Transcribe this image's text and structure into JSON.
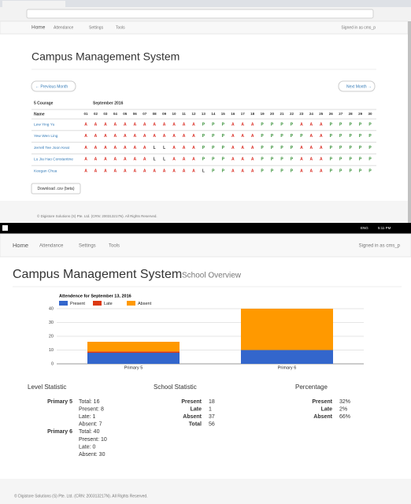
{
  "top": {
    "nav": {
      "home": "Home",
      "menus": [
        "Attendance",
        "Settings",
        "Tools"
      ],
      "user": "Signed in as cms_p"
    },
    "title": "Campus Management System",
    "prev": "← Previous Month",
    "next": "Next Month →",
    "class_name": "5 Courage",
    "month": "September 2016",
    "name_header": "Name",
    "days": [
      "01",
      "02",
      "03",
      "04",
      "05",
      "06",
      "07",
      "08",
      "09",
      "10",
      "11",
      "12",
      "13",
      "14",
      "15",
      "16",
      "17",
      "18",
      "19",
      "20",
      "21",
      "22",
      "23",
      "24",
      "25",
      "26",
      "27",
      "28",
      "29",
      "30"
    ],
    "students": [
      {
        "name": "Lew Ying Yu",
        "marks": [
          "A",
          "A",
          "A",
          "A",
          "A",
          "A",
          "A",
          "A",
          "A",
          "A",
          "A",
          "A",
          "P",
          "P",
          "P",
          "A",
          "A",
          "A",
          "P",
          "P",
          "P",
          "P",
          "A",
          "A",
          "A",
          "P",
          "P",
          "P",
          "P",
          "P"
        ]
      },
      {
        "name": "Yew Wen Ling",
        "marks": [
          "A",
          "A",
          "A",
          "A",
          "A",
          "A",
          "A",
          "A",
          "A",
          "A",
          "A",
          "A",
          "P",
          "P",
          "P",
          "A",
          "A",
          "A",
          "P",
          "P",
          "P",
          "P",
          "P",
          "A",
          "A",
          "P",
          "P",
          "P",
          "P",
          "P"
        ]
      },
      {
        "name": "Jerrell Tee Joon Keat",
        "marks": [
          "A",
          "A",
          "A",
          "A",
          "A",
          "A",
          "A",
          "L",
          "L",
          "A",
          "A",
          "A",
          "P",
          "P",
          "P",
          "A",
          "A",
          "A",
          "P",
          "P",
          "P",
          "P",
          "A",
          "A",
          "A",
          "P",
          "P",
          "P",
          "P",
          "P"
        ]
      },
      {
        "name": "Lu Jia Hao Constantine",
        "marks": [
          "A",
          "A",
          "A",
          "A",
          "A",
          "A",
          "A",
          "L",
          "L",
          "A",
          "A",
          "A",
          "P",
          "P",
          "P",
          "A",
          "A",
          "A",
          "P",
          "P",
          "P",
          "P",
          "A",
          "A",
          "A",
          "P",
          "P",
          "P",
          "P",
          "P"
        ]
      },
      {
        "name": "Keegan Chua",
        "marks": [
          "A",
          "A",
          "A",
          "A",
          "A",
          "A",
          "A",
          "A",
          "A",
          "A",
          "A",
          "A",
          "L",
          "P",
          "P",
          "A",
          "A",
          "A",
          "P",
          "P",
          "P",
          "P",
          "A",
          "A",
          "A",
          "P",
          "P",
          "P",
          "P",
          "P"
        ]
      }
    ],
    "download": "Download .csv (beta)",
    "footer": "© Digistore Solutions (S) Pte. Ltd. (CRN: 200313217N). All Rights Reserved."
  },
  "taskbar": {
    "lang": "ENG",
    "time": "5:11 PM"
  },
  "bottom": {
    "nav": {
      "home": "Home",
      "menus": [
        "Attendance",
        "Settings",
        "Tools"
      ],
      "user": "Signed in as cms_p"
    },
    "title": "Campus Management System",
    "subtitle": "School Overview",
    "level": {
      "heading": "Level Statistic",
      "groups": [
        {
          "name": "Primary 5",
          "lines": [
            "Total: 16",
            "Present: 8",
            "Late: 1",
            "Absent: 7"
          ]
        },
        {
          "name": "Primary 6",
          "lines": [
            "Total: 40",
            "Present: 10",
            "Late: 0",
            "Absent: 30"
          ]
        }
      ]
    },
    "school": {
      "heading": "School Statistic",
      "rows": [
        [
          "Present",
          "18"
        ],
        [
          "Late",
          "1"
        ],
        [
          "Absent",
          "37"
        ],
        [
          "Total",
          "56"
        ]
      ]
    },
    "percentage": {
      "heading": "Percentage",
      "rows": [
        [
          "Present",
          "32%"
        ],
        [
          "Late",
          "2%"
        ],
        [
          "Absent",
          "66%"
        ]
      ]
    },
    "footer": "© Digistore Solutions (S) Pte. Ltd. (CRN: 200313217N). All Rights Reserved."
  },
  "chart_data": {
    "type": "bar",
    "stacked": true,
    "title": "Attendence for September 13, 2016",
    "categories": [
      "Primary 5",
      "Primary 6"
    ],
    "series": [
      {
        "name": "Present",
        "color": "#3366cc",
        "values": [
          8,
          10
        ]
      },
      {
        "name": "Late",
        "color": "#dc3912",
        "values": [
          1,
          0
        ]
      },
      {
        "name": "Absent",
        "color": "#ff9900",
        "values": [
          7,
          30
        ]
      }
    ],
    "ylim": [
      0,
      40
    ],
    "yticks": [
      0,
      10,
      20,
      30,
      40
    ],
    "grid": true
  }
}
